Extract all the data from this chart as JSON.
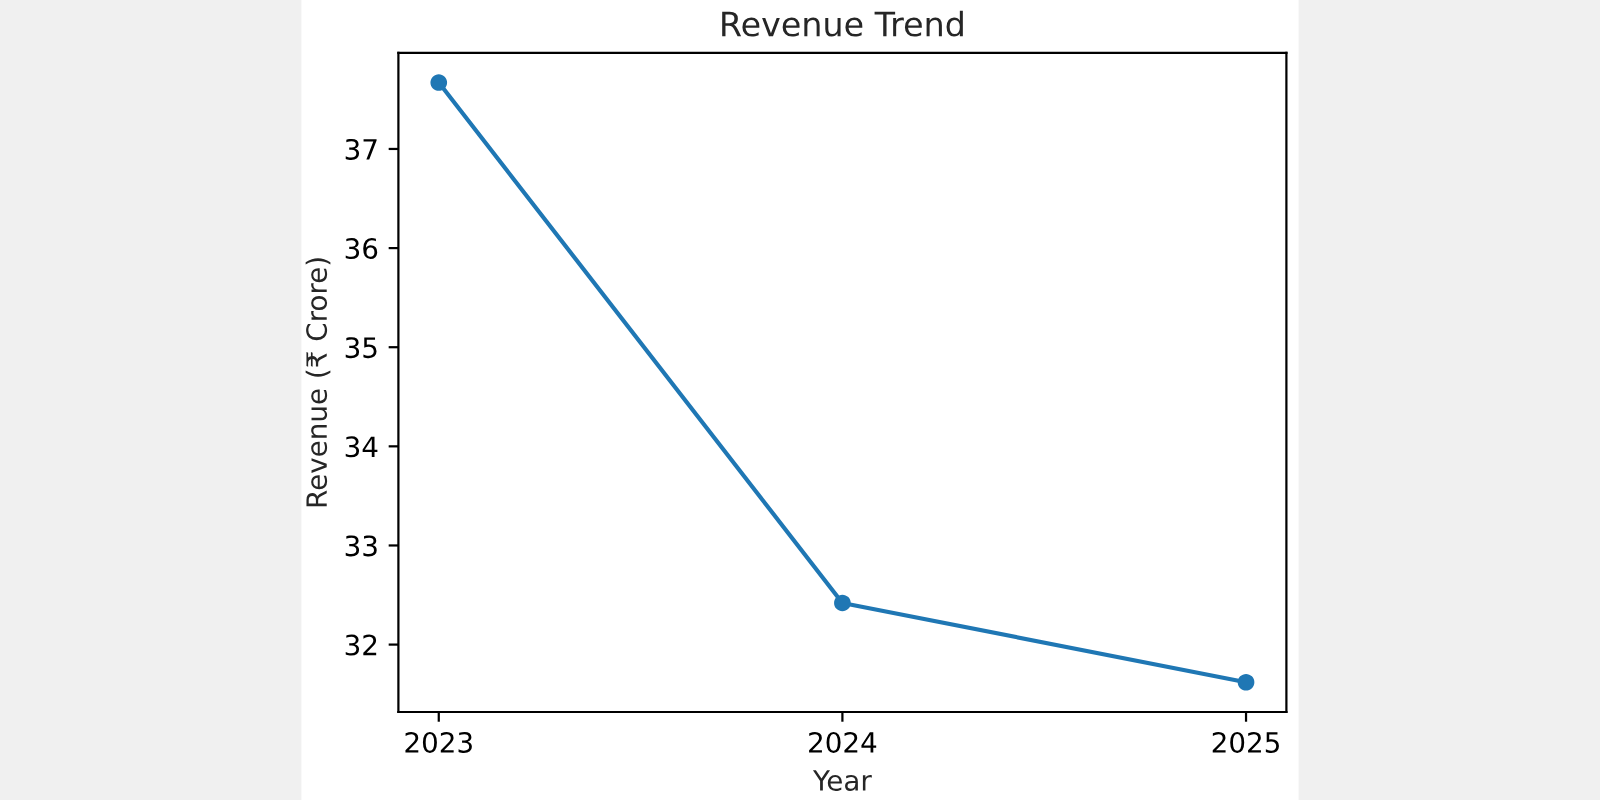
{
  "chart_data": {
    "type": "line",
    "title": "Revenue Trend",
    "xlabel": "Year",
    "ylabel": "Revenue (₹ Crore)",
    "x": [
      2023,
      2024,
      2025
    ],
    "series": [
      {
        "color": "#1f77b4",
        "values": [
          37.67,
          32.42,
          31.62
        ]
      }
    ],
    "xlim": [
      2022.9,
      2025.1
    ],
    "ylim": [
      31.32,
      37.97
    ],
    "xticks": [
      2023,
      2024,
      2025
    ],
    "yticks": [
      32,
      33,
      34,
      35,
      36,
      37
    ],
    "marker": "circle",
    "line_style": "solid",
    "grid": false
  }
}
